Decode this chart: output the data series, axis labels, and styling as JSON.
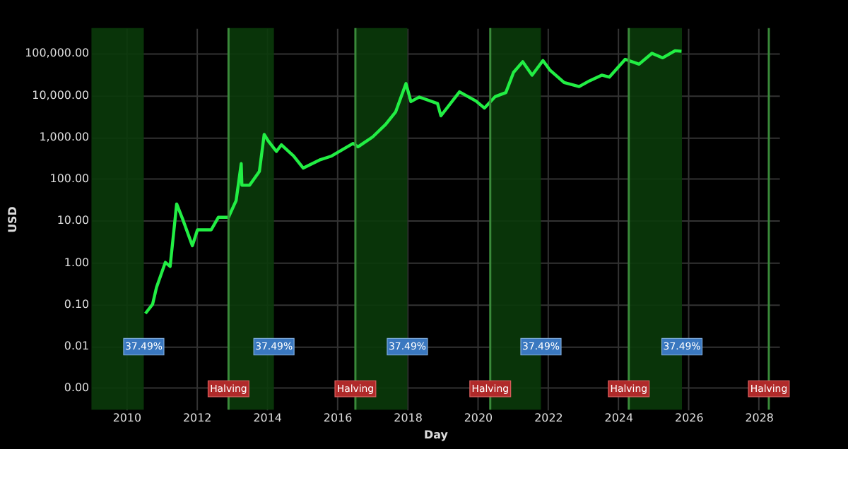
{
  "chart_data": {
    "type": "line",
    "xlabel": "Day",
    "ylabel": "USD",
    "log": "y",
    "grid": true,
    "line_style": "solid",
    "marker": "none",
    "xlim": [
      "2009-01-01",
      "2028-08-01"
    ],
    "xticks": [
      {
        "value": "2010-01-01",
        "label": "2010"
      },
      {
        "value": "2012-01-01",
        "label": "2012"
      },
      {
        "value": "2014-01-01",
        "label": "2014"
      },
      {
        "value": "2016-01-01",
        "label": "2016"
      },
      {
        "value": "2018-01-01",
        "label": "2018"
      },
      {
        "value": "2020-01-01",
        "label": "2020"
      },
      {
        "value": "2022-01-01",
        "label": "2022"
      },
      {
        "value": "2024-01-01",
        "label": "2024"
      },
      {
        "value": "2026-01-01",
        "label": "2026"
      },
      {
        "value": "2028-01-01",
        "label": "2028"
      }
    ],
    "ylim": [
      0.0003,
      400000
    ],
    "yticks": [
      {
        "value": 0.001,
        "label": "0.00"
      },
      {
        "value": 0.01,
        "label": "0.01"
      },
      {
        "value": 0.1,
        "label": "0.10"
      },
      {
        "value": 1,
        "label": "1.00"
      },
      {
        "value": 10,
        "label": "10.00"
      },
      {
        "value": 100,
        "label": "100.00"
      },
      {
        "value": 1000,
        "label": "1,000.00"
      },
      {
        "value": 10000,
        "label": "10,000.00"
      },
      {
        "value": 100000,
        "label": "100,000.00"
      }
    ],
    "series": [
      {
        "color": "#22ee44",
        "x": [
          "2010-07-18",
          "2010-10-01",
          "2010-11-10",
          "2011-02-10",
          "2011-04-01",
          "2011-06-08",
          "2011-08-15",
          "2011-11-18",
          "2012-01-10",
          "2012-06-01",
          "2012-08-15",
          "2012-11-28",
          "2013-02-15",
          "2013-04-09",
          "2013-04-16",
          "2013-07-05",
          "2013-10-15",
          "2013-12-04",
          "2014-01-15",
          "2014-04-10",
          "2014-06-01",
          "2014-10-05",
          "2015-01-14",
          "2015-07-01",
          "2015-11-05",
          "2016-06-15",
          "2016-08-05",
          "2017-01-04",
          "2017-05-20",
          "2017-09-01",
          "2017-12-17",
          "2018-02-06",
          "2018-05-05",
          "2018-11-10",
          "2018-12-15",
          "2019-06-26",
          "2019-12-15",
          "2020-03-12",
          "2020-07-01",
          "2020-10-20",
          "2021-01-08",
          "2021-04-14",
          "2021-07-20",
          "2021-11-10",
          "2022-01-20",
          "2022-06-18",
          "2022-11-21",
          "2023-03-10",
          "2023-07-14",
          "2023-10-01",
          "2024-03-14",
          "2024-08-05",
          "2024-12-17",
          "2025-04-08",
          "2025-08-14",
          "2025-10-20"
        ],
        "values": [
          0.06,
          0.1,
          0.25,
          1.0,
          0.8,
          25,
          10,
          2.5,
          6,
          6,
          12,
          12,
          30,
          230,
          70,
          70,
          150,
          1150,
          800,
          450,
          650,
          350,
          180,
          280,
          350,
          700,
          580,
          1000,
          2000,
          4000,
          19000,
          7000,
          9000,
          6300,
          3200,
          12000,
          7200,
          4900,
          9200,
          11500,
          35000,
          63000,
          30000,
          67000,
          40000,
          20000,
          16000,
          22000,
          30000,
          27000,
          72000,
          55000,
          100000,
          78000,
          115000,
          112000
        ]
      }
    ],
    "bands": [
      {
        "axis": "x",
        "from": "2009-01-03",
        "to": "2010-07-01",
        "label": "37.49%",
        "color": "#0a3a0a"
      },
      {
        "axis": "x",
        "from": "2012-11-28",
        "to": "2014-03-15",
        "label": "37.49%",
        "color": "#0a3a0a"
      },
      {
        "axis": "x",
        "from": "2016-07-09",
        "to": "2017-12-31",
        "label": "37.49%",
        "color": "#0a3a0a"
      },
      {
        "axis": "x",
        "from": "2020-05-11",
        "to": "2021-10-20",
        "label": "37.49%",
        "color": "#0a3a0a"
      },
      {
        "axis": "x",
        "from": "2024-04-20",
        "to": "2025-10-25",
        "label": "37.49%",
        "color": "#0a3a0a"
      }
    ],
    "ref_lines": [
      {
        "axis": "x",
        "value": "2012-11-28",
        "label": "Halving",
        "color": "#3a8a3a"
      },
      {
        "axis": "x",
        "value": "2016-07-09",
        "label": "Halving",
        "color": "#3a8a3a"
      },
      {
        "axis": "x",
        "value": "2020-05-11",
        "label": "Halving",
        "color": "#3a8a3a"
      },
      {
        "axis": "x",
        "value": "2024-04-20",
        "label": "Halving",
        "color": "#3a8a3a"
      },
      {
        "axis": "x",
        "value": "2028-04-15",
        "label": "Halving",
        "color": "#3a8a3a"
      }
    ]
  }
}
